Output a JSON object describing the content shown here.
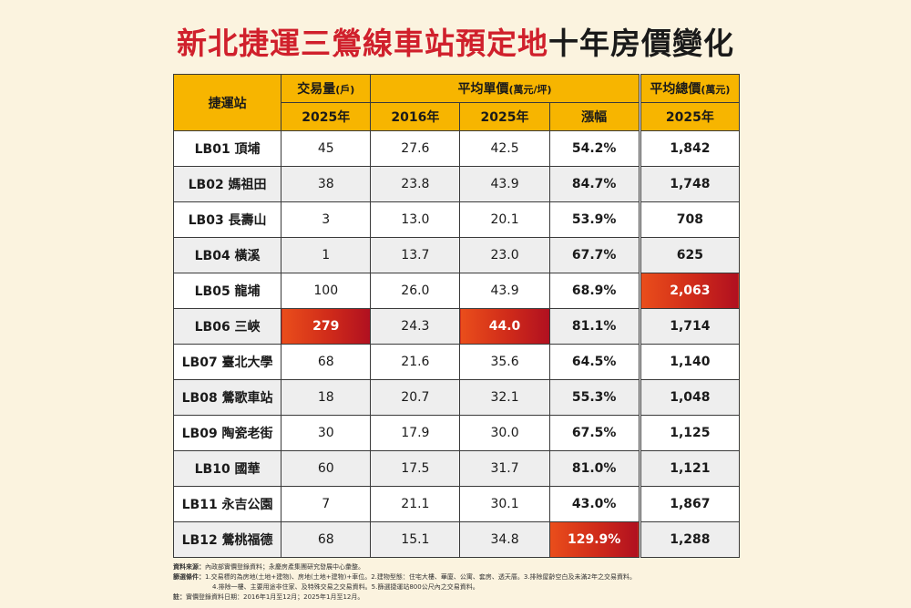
{
  "title": {
    "red": "新北捷運三鶯線車站預定地",
    "black": "十年房價變化"
  },
  "header": {
    "station": "捷運站",
    "volume": "交易量",
    "volume_unit": "(戶)",
    "unit_price": "平均單價",
    "unit_price_unit": "(萬元/坪)",
    "total_price": "平均總價",
    "total_price_unit": "(萬元)",
    "year_2025": "2025年",
    "year_2016": "2016年",
    "growth": "漲幅"
  },
  "rows": [
    {
      "station": "LB01 頂埔",
      "volume": "45",
      "p2016": "27.6",
      "p2025": "42.5",
      "growth": "54.2%",
      "total": "1,842"
    },
    {
      "station": "LB02 媽祖田",
      "volume": "38",
      "p2016": "23.8",
      "p2025": "43.9",
      "growth": "84.7%",
      "total": "1,748"
    },
    {
      "station": "LB03 長壽山",
      "volume": "3",
      "p2016": "13.0",
      "p2025": "20.1",
      "growth": "53.9%",
      "total": "708"
    },
    {
      "station": "LB04 橫溪",
      "volume": "1",
      "p2016": "13.7",
      "p2025": "23.0",
      "growth": "67.7%",
      "total": "625"
    },
    {
      "station": "LB05 龍埔",
      "volume": "100",
      "p2016": "26.0",
      "p2025": "43.9",
      "growth": "68.9%",
      "total": "2,063"
    },
    {
      "station": "LB06 三峽",
      "volume": "279",
      "p2016": "24.3",
      "p2025": "44.0",
      "growth": "81.1%",
      "total": "1,714"
    },
    {
      "station": "LB07 臺北大學",
      "volume": "68",
      "p2016": "21.6",
      "p2025": "35.6",
      "growth": "64.5%",
      "total": "1,140"
    },
    {
      "station": "LB08 鶯歌車站",
      "volume": "18",
      "p2016": "20.7",
      "p2025": "32.1",
      "growth": "55.3%",
      "total": "1,048"
    },
    {
      "station": "LB09 陶瓷老街",
      "volume": "30",
      "p2016": "17.9",
      "p2025": "30.0",
      "growth": "67.5%",
      "total": "1,125"
    },
    {
      "station": "LB10 國華",
      "volume": "60",
      "p2016": "17.5",
      "p2025": "31.7",
      "growth": "81.0%",
      "total": "1,121"
    },
    {
      "station": "LB11 永吉公園",
      "volume": "7",
      "p2016": "21.1",
      "p2025": "30.1",
      "growth": "43.0%",
      "total": "1,867"
    },
    {
      "station": "LB12 鶯桃福德",
      "volume": "68",
      "p2016": "15.1",
      "p2025": "34.8",
      "growth": "129.9%",
      "total": "1,288"
    }
  ],
  "highlight_color": "#d0202c",
  "notes": {
    "source_label": "資料來源：",
    "source_text": "內政部實價登錄資料；永慶房產集團研究發展中心彙整。",
    "filter_label": "篩選條件：",
    "filter_text1": "1.交易標的為房地(土地+建物)、房地(土地+建物)+車位。2.建物型態：住宅大樓、華廈、公寓、套房、透天厝。3.排除屋齡空白及未滿2年之交易資料。",
    "filter_text2": "4.排除一樓、主要用途非住家、及特殊交易之交易資料。5.篩選捷運站800公尺內之交易資料。",
    "note_label": "註：",
    "note_text": "實價登錄資料日期：2016年1月至12月；2025年1月至12月。"
  }
}
